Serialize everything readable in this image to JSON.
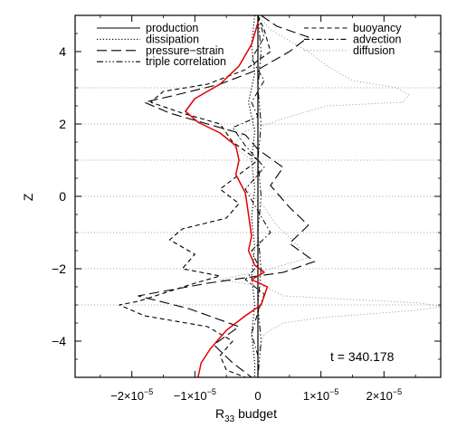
{
  "chart_data": {
    "type": "line",
    "title": "",
    "xlabel_main": "R",
    "xlabel_sub": "33",
    "xlabel_rest": " budget",
    "ylabel": "Z",
    "xlim": [
      -2.9e-05,
      2.9e-05
    ],
    "ylim": [
      -5,
      5
    ],
    "x_ticks": [
      {
        "value": -2e-05,
        "mantissa": "−2×10",
        "exp": "−5"
      },
      {
        "value": -1e-05,
        "mantissa": "−1×10",
        "exp": "−5"
      },
      {
        "value": 0,
        "mantissa": "0",
        "exp": ""
      },
      {
        "value": 1e-05,
        "mantissa": "1×10",
        "exp": "−5"
      },
      {
        "value": 2e-05,
        "mantissa": "2×10",
        "exp": "−5"
      }
    ],
    "y_ticks": [
      -4,
      -2,
      0,
      2,
      4
    ],
    "grid_lines_z": [
      3,
      2,
      1,
      0,
      -1,
      -2,
      -3
    ],
    "annotation": "t = 340.178",
    "legend_position": "top",
    "legend_left": [
      {
        "name": "production",
        "dash": ""
      },
      {
        "name": "dissipation",
        "dash": "1.2 2.2"
      },
      {
        "name": "pressure−strain",
        "dash": "11 5"
      },
      {
        "name": "triple correlation",
        "dash": "7 2.5 1.5 2.5 1.5 2.5 1.5 2.5"
      }
    ],
    "legend_right": [
      {
        "name": "buoyancy",
        "dash": "5 3.5"
      },
      {
        "name": "advection",
        "dash": "6 3 1.5 3"
      },
      {
        "name": "diffusion",
        "dash": "1 2.5",
        "color": "#9a9a9a"
      }
    ],
    "series": [
      {
        "key": "diffusion",
        "color": "#8c8c8c",
        "width": 0.9,
        "dash": "1 2.5",
        "points": [
          [
            0,
            5
          ],
          [
            2e-06,
            4.6
          ],
          [
            8e-06,
            4.0
          ],
          [
            1.1e-05,
            3.6
          ],
          [
            1.5e-05,
            3.2
          ],
          [
            2.2e-05,
            3.0
          ],
          [
            2.4e-05,
            2.8
          ],
          [
            2.3e-05,
            2.6
          ],
          [
            1.1e-05,
            2.5
          ],
          [
            5e-06,
            2.2
          ],
          [
            -2e-06,
            1.8
          ],
          [
            -4e-06,
            1.4
          ],
          [
            -1e-06,
            1.0
          ],
          [
            0,
            0.6
          ],
          [
            -2e-06,
            0.2
          ],
          [
            1e-06,
            -0.3
          ],
          [
            3e-06,
            -0.8
          ],
          [
            6e-06,
            -1.3
          ],
          [
            8e-06,
            -1.7
          ],
          [
            2e-06,
            -2.0
          ],
          [
            -6e-06,
            -2.3
          ],
          [
            1e-06,
            -2.5
          ],
          [
            3e-06,
            -2.65
          ],
          [
            4e-06,
            -2.75
          ],
          [
            1.5e-05,
            -2.85
          ],
          [
            2.6e-05,
            -2.95
          ],
          [
            2.9e-05,
            -3.05
          ],
          [
            2.5e-05,
            -3.15
          ],
          [
            1e-05,
            -3.35
          ],
          [
            4e-06,
            -3.5
          ],
          [
            1e-06,
            -3.8
          ],
          [
            0,
            -4.3
          ],
          [
            0,
            -5
          ]
        ]
      },
      {
        "key": "buoyancy",
        "color": "#000000",
        "width": 1.1,
        "dash": "5 3.5",
        "points": [
          [
            0,
            5
          ],
          [
            1e-06,
            4.6
          ],
          [
            2e-06,
            4.0
          ],
          [
            -2e-06,
            3.5
          ],
          [
            -8e-06,
            3.1
          ],
          [
            -1.5e-05,
            2.9
          ],
          [
            -1.7e-05,
            2.6
          ],
          [
            -1.2e-05,
            2.3
          ],
          [
            -6e-06,
            2.0
          ],
          [
            -4e-06,
            1.5
          ],
          [
            0,
            1.0
          ],
          [
            -3e-06,
            0.6
          ],
          [
            -6e-06,
            0.2
          ],
          [
            -3e-06,
            -0.2
          ],
          [
            -5e-06,
            -0.6
          ],
          [
            -1.2e-05,
            -0.9
          ],
          [
            -1.4e-05,
            -1.2
          ],
          [
            -1e-05,
            -1.6
          ],
          [
            -1.2e-05,
            -2.0
          ],
          [
            -6e-06,
            -2.2
          ],
          [
            -1e-05,
            -2.4
          ],
          [
            -1.9e-05,
            -2.9
          ],
          [
            -2.2e-05,
            -3.0
          ],
          [
            -1.8e-05,
            -3.3
          ],
          [
            -8e-06,
            -3.6
          ],
          [
            -4e-06,
            -4.0
          ],
          [
            -6e-06,
            -4.4
          ],
          [
            -5e-06,
            -4.8
          ],
          [
            -2e-06,
            -5
          ]
        ]
      },
      {
        "key": "pressure-strain",
        "color": "#000000",
        "width": 1.1,
        "dash": "11 5",
        "points": [
          [
            5e-07,
            5
          ],
          [
            3e-06,
            4.7
          ],
          [
            8e-06,
            4.4
          ],
          [
            5e-06,
            4.0
          ],
          [
            0,
            3.5
          ],
          [
            -6e-06,
            3.1
          ],
          [
            -1.3e-05,
            2.8
          ],
          [
            -1.8e-05,
            2.6
          ],
          [
            -1.4e-05,
            2.3
          ],
          [
            -8e-06,
            2.0
          ],
          [
            -2e-06,
            1.7
          ],
          [
            0,
            1.3
          ],
          [
            4e-06,
            0.8
          ],
          [
            2e-06,
            0.3
          ],
          [
            5e-06,
            -0.3
          ],
          [
            8e-06,
            -0.8
          ],
          [
            5e-06,
            -1.3
          ],
          [
            9e-06,
            -1.8
          ],
          [
            4e-06,
            -2.1
          ],
          [
            -8e-06,
            -2.4
          ],
          [
            -1.9e-05,
            -2.75
          ],
          [
            -1.1e-05,
            -3.1
          ],
          [
            -3e-06,
            -3.6
          ],
          [
            -7e-06,
            -4.1
          ],
          [
            -4e-06,
            -4.6
          ],
          [
            -1e-06,
            -5
          ]
        ]
      },
      {
        "key": "advection",
        "color": "#000000",
        "width": 1.0,
        "dash": "6 3 1.5 3",
        "points": [
          [
            0,
            5
          ],
          [
            1e-06,
            4.4
          ],
          [
            -1e-06,
            3.8
          ],
          [
            1e-06,
            3.2
          ],
          [
            -1e-06,
            2.6
          ],
          [
            0,
            2.2
          ],
          [
            -4e-06,
            1.9
          ],
          [
            -2e-06,
            1.4
          ],
          [
            1e-06,
            0.8
          ],
          [
            -2e-06,
            0.2
          ],
          [
            0,
            -0.4
          ],
          [
            2e-06,
            -1.0
          ],
          [
            -1e-06,
            -1.5
          ],
          [
            0,
            -1.9
          ],
          [
            -2e-06,
            -2.3
          ],
          [
            1e-06,
            -2.7
          ],
          [
            0,
            -3.2
          ],
          [
            -1e-06,
            -3.8
          ],
          [
            0,
            -4.4
          ],
          [
            0,
            -5
          ]
        ]
      },
      {
        "key": "dissipation",
        "color": "#000000",
        "width": 1.2,
        "dash": "1.2 2.2",
        "points": [
          [
            -5e-07,
            5
          ],
          [
            -1e-06,
            4.2
          ],
          [
            -5e-07,
            3.4
          ],
          [
            -1.5e-06,
            2.6
          ],
          [
            -5e-07,
            1.8
          ],
          [
            -1e-06,
            1.0
          ],
          [
            -5e-07,
            0.2
          ],
          [
            -1e-06,
            -0.6
          ],
          [
            -5e-07,
            -1.4
          ],
          [
            -1e-06,
            -2.2
          ],
          [
            -5e-07,
            -3.0
          ],
          [
            -1e-06,
            -3.8
          ],
          [
            -5e-07,
            -4.6
          ],
          [
            -5e-07,
            -5
          ]
        ]
      },
      {
        "key": "triple correlation",
        "color": "#000000",
        "width": 1.0,
        "dash": "7 2.5 1.5 2.5 1.5 2.5 1.5 2.5",
        "points": [
          [
            0,
            5
          ],
          [
            5e-07,
            4.0
          ],
          [
            0,
            3.0
          ],
          [
            5e-07,
            2.0
          ],
          [
            0,
            1.0
          ],
          [
            5e-07,
            0
          ],
          [
            0,
            -1.0
          ],
          [
            5e-07,
            -2.0
          ],
          [
            0,
            -3.0
          ],
          [
            5e-07,
            -4.0
          ],
          [
            0,
            -5
          ]
        ]
      },
      {
        "key": "production",
        "color": "#000000",
        "width": 1.2,
        "dash": "",
        "points": [
          [
            0,
            5
          ],
          [
            0,
            -5
          ]
        ]
      },
      {
        "key": "sum",
        "color": "#e00000",
        "width": 1.5,
        "dash": "",
        "points": [
          [
            0,
            4.8
          ],
          [
            -1e-06,
            4.2
          ],
          [
            -3e-06,
            3.6
          ],
          [
            -6e-06,
            3.1
          ],
          [
            -1e-05,
            2.7
          ],
          [
            -1.15e-05,
            2.35
          ],
          [
            -9.5e-06,
            2.05
          ],
          [
            -6e-06,
            1.75
          ],
          [
            -3.5e-06,
            1.4
          ],
          [
            -3e-06,
            1.0
          ],
          [
            -3.5e-06,
            0.6
          ],
          [
            -2e-06,
            0.1
          ],
          [
            -1.5e-06,
            -0.5
          ],
          [
            -1e-06,
            -1.1
          ],
          [
            -1.5e-06,
            -1.5
          ],
          [
            -5e-07,
            -1.9
          ],
          [
            1e-06,
            -2.1
          ],
          [
            -1e-06,
            -2.3
          ],
          [
            1.5e-06,
            -2.5
          ],
          [
            5e-07,
            -3.0
          ],
          [
            -2e-06,
            -3.3
          ],
          [
            -5e-06,
            -3.7
          ],
          [
            -7.5e-06,
            -4.2
          ],
          [
            -9e-06,
            -4.6
          ],
          [
            -9.5e-06,
            -5
          ]
        ]
      }
    ]
  }
}
